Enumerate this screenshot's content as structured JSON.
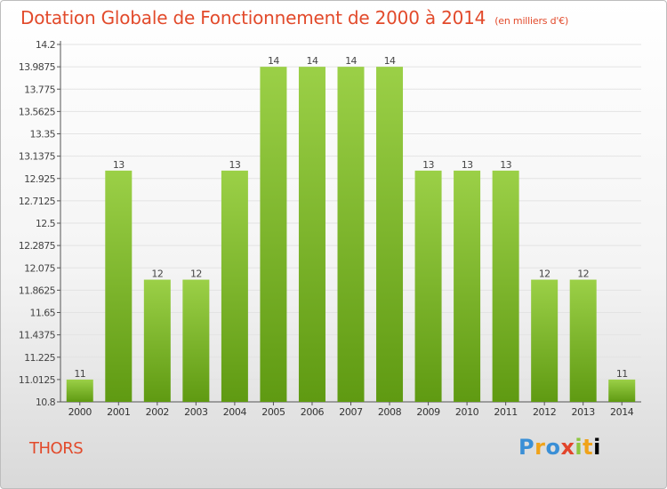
{
  "header": {
    "title": "Dotation Globale de Fonctionnement de 2000 à 2014",
    "subtitle": "(en milliers d'€)"
  },
  "footer": {
    "commune": "THORS",
    "logo_letters": [
      "P",
      "r",
      "o",
      "x",
      "i",
      "t",
      "i"
    ]
  },
  "colors": {
    "bar_light": "#9bd047",
    "bar_dark": "#5f9a12",
    "title": "#e24a2b"
  },
  "chart_data": {
    "type": "bar",
    "title": "Dotation Globale de Fonctionnement de 2000 à 2014",
    "xlabel": "",
    "ylabel": "",
    "categories": [
      "2000",
      "2001",
      "2002",
      "2003",
      "2004",
      "2005",
      "2006",
      "2007",
      "2008",
      "2009",
      "2010",
      "2011",
      "2012",
      "2013",
      "2014"
    ],
    "values": [
      11,
      13,
      12,
      12,
      13,
      14,
      14,
      14,
      14,
      13,
      13,
      13,
      12,
      12,
      11
    ],
    "bar_heights": [
      11.0125,
      13.0,
      11.9625,
      11.9625,
      13.0,
      13.9875,
      13.9875,
      13.9875,
      13.9875,
      13.0,
      13.0,
      13.0,
      11.9625,
      11.9625,
      11.0125
    ],
    "data_labels": [
      "11",
      "13",
      "12",
      "12",
      "13",
      "14",
      "14",
      "14",
      "14",
      "13",
      "13",
      "13",
      "12",
      "12",
      "11"
    ],
    "y_ticks": [
      "10.8",
      "11.0125",
      "11.225",
      "11.4375",
      "11.65",
      "11.8625",
      "12.075",
      "12.2875",
      "12.5",
      "12.7125",
      "12.925",
      "13.1375",
      "13.35",
      "13.5625",
      "13.775",
      "13.9875",
      "14.2"
    ],
    "ylim": [
      10.8,
      14.2
    ],
    "grid": true
  }
}
